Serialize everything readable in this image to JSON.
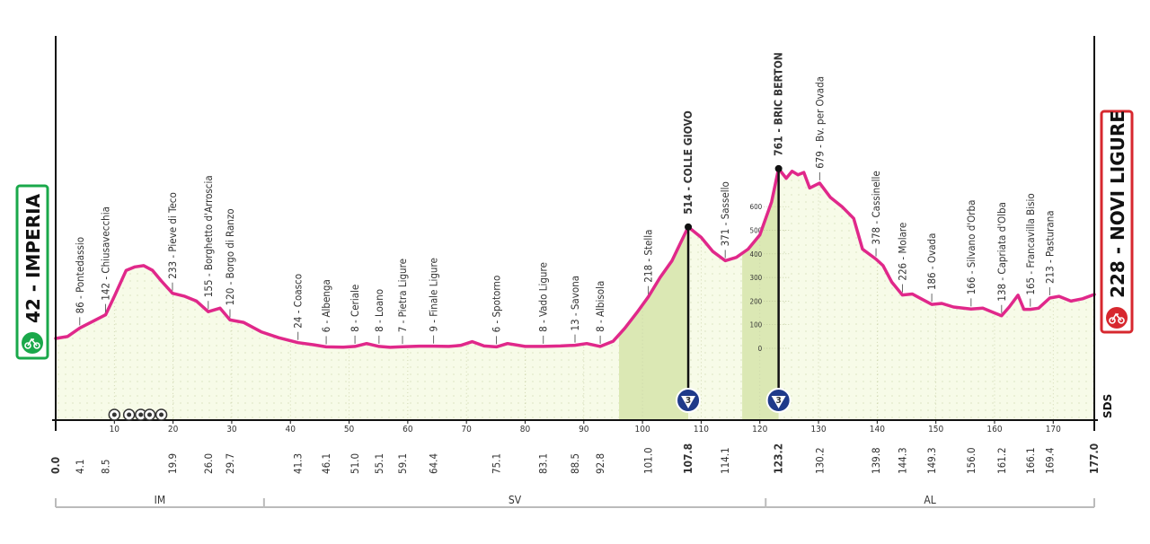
{
  "stage": {
    "start": {
      "altitude": "42",
      "name": "IMPERIA",
      "label": "42 - IMPERIA"
    },
    "finish": {
      "altitude": "228",
      "name": "NOVI LIGURE",
      "label": "228 - NOVI LIGURE"
    },
    "logo_text": "SDS"
  },
  "chart_data": {
    "type": "area",
    "title": "",
    "xlabel": "",
    "ylabel": "",
    "xlim": [
      0,
      177
    ],
    "ylim": [
      0,
      800
    ],
    "x_ticks": [
      10,
      20,
      30,
      40,
      50,
      60,
      70,
      80,
      90,
      100,
      110,
      120,
      130,
      140,
      150,
      160,
      170
    ],
    "y_ticks_climb_scale": [
      0,
      100,
      200,
      300,
      400,
      500,
      600
    ],
    "profile": {
      "x": [
        0,
        2,
        4.1,
        6,
        8.5,
        10,
        12,
        13.5,
        15,
        16.5,
        18,
        19.9,
        22,
        24,
        26,
        28,
        29.7,
        32,
        35,
        38,
        41.3,
        44,
        46.1,
        49,
        51,
        53,
        55.1,
        57,
        59.1,
        62,
        64.4,
        67,
        69,
        71,
        73,
        75.1,
        77,
        80,
        83.1,
        86,
        88.5,
        90.5,
        92.8,
        95,
        97,
        99,
        101,
        103,
        105,
        107.8,
        110,
        112,
        114.1,
        116,
        118,
        120,
        122,
        123.2,
        124.5,
        125.5,
        126.5,
        127.5,
        128.5,
        130.2,
        132,
        134,
        136,
        137.5,
        139.8,
        141,
        142.5,
        144.3,
        146,
        147.5,
        149.3,
        151,
        153,
        156,
        158,
        160,
        161.2,
        162.5,
        164,
        165,
        166.1,
        167.5,
        169.4,
        171,
        173,
        175,
        177
      ],
      "y": [
        42,
        50,
        86,
        110,
        142,
        220,
        330,
        345,
        350,
        330,
        285,
        233,
        220,
        200,
        155,
        170,
        120,
        110,
        70,
        45,
        24,
        15,
        6,
        5,
        8,
        20,
        8,
        4,
        7,
        9,
        9,
        8,
        12,
        28,
        10,
        6,
        20,
        8,
        8,
        10,
        13,
        20,
        8,
        30,
        85,
        150,
        218,
        300,
        370,
        514,
        470,
        410,
        371,
        385,
        420,
        480,
        620,
        761,
        720,
        750,
        735,
        745,
        679,
        700,
        640,
        600,
        550,
        420,
        378,
        350,
        280,
        226,
        230,
        210,
        186,
        190,
        175,
        166,
        170,
        150,
        138,
        175,
        225,
        165,
        165,
        170,
        213,
        220,
        200,
        210,
        228
      ]
    },
    "waypoints": [
      {
        "km": "4.1",
        "label": "86 - Pontedassio",
        "bold": false
      },
      {
        "km": "8.5",
        "label": "142 - Chiusavecchia",
        "bold": false
      },
      {
        "km": "19.9",
        "label": "233 - Pieve di Teco",
        "bold": false
      },
      {
        "km": "26.0",
        "label": "155 - Borghetto d'Arroscia",
        "bold": false
      },
      {
        "km": "29.7",
        "label": "120 - Borgo di Ranzo",
        "bold": false
      },
      {
        "km": "41.3",
        "label": "24 - Coasco",
        "bold": false
      },
      {
        "km": "46.1",
        "label": "6 - Albenga",
        "bold": false
      },
      {
        "km": "51.0",
        "label": "8 - Ceriale",
        "bold": false
      },
      {
        "km": "55.1",
        "label": "8 - Loano",
        "bold": false
      },
      {
        "km": "59.1",
        "label": "7 - Pietra Ligure",
        "bold": false
      },
      {
        "km": "64.4",
        "label": "9 - Finale Ligure",
        "bold": false
      },
      {
        "km": "75.1",
        "label": "6 - Spotorno",
        "bold": false
      },
      {
        "km": "83.1",
        "label": "8 - Vado Ligure",
        "bold": false
      },
      {
        "km": "88.5",
        "label": "13 - Savona",
        "bold": false
      },
      {
        "km": "92.8",
        "label": "8 - Albisola",
        "bold": false
      },
      {
        "km": "101.0",
        "label": "218 - Stella",
        "bold": false
      },
      {
        "km": "107.8",
        "label": "514 - COLLE GIOVO",
        "bold": true
      },
      {
        "km": "114.1",
        "label": "371 - Sassello",
        "bold": false
      },
      {
        "km": "123.2",
        "label": "761 - BRIC BERTON",
        "bold": true
      },
      {
        "km": "130.2",
        "label": "679 - Bv. per Ovada",
        "bold": false
      },
      {
        "km": "139.8",
        "label": "378 - Cassinelle",
        "bold": false
      },
      {
        "km": "144.3",
        "label": "226 - Molare",
        "bold": false
      },
      {
        "km": "149.3",
        "label": "186 - Ovada",
        "bold": false
      },
      {
        "km": "156.0",
        "label": "166 - Silvano d'Orba",
        "bold": false
      },
      {
        "km": "161.2",
        "label": "138 - Capriata d'Olba",
        "bold": false
      },
      {
        "km": "166.1",
        "label": "165 - Francavilla Bisio",
        "bold": false
      },
      {
        "km": "169.4",
        "label": "213 - Pasturana",
        "bold": false
      }
    ],
    "km_start": "0.0",
    "km_finish": "177.0",
    "climbs": [
      {
        "name": "COLLE GIOVO",
        "category": "3",
        "start_km": 96,
        "end_km": 107.8
      },
      {
        "name": "BRIC BERTON",
        "category": "3",
        "start_km": 117,
        "end_km": 123.2
      }
    ],
    "intermediate_markers_km": [
      10,
      12.5,
      14.5,
      16,
      18
    ],
    "provinces": [
      {
        "code": "IM",
        "from_km": 0,
        "to_km": 35.5
      },
      {
        "code": "SV",
        "from_km": 35.5,
        "to_km": 121
      },
      {
        "code": "AL",
        "from_km": 121,
        "to_km": 177
      }
    ],
    "colors": {
      "profile_line": "#e0288a",
      "fill": "#f7fbe8",
      "climb_fill": "#dbe8b4",
      "start_green": "#1aa84a",
      "finish_red": "#d7282f",
      "climb_badge": "#1f3a8a",
      "axis": "#111111",
      "province_line": "#bbbbbb"
    }
  }
}
